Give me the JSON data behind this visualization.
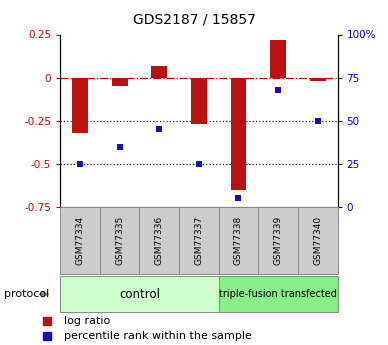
{
  "title": "GDS2187 / 15857",
  "samples": [
    "GSM77334",
    "GSM77335",
    "GSM77336",
    "GSM77337",
    "GSM77338",
    "GSM77339",
    "GSM77340"
  ],
  "log_ratio": [
    -0.32,
    -0.05,
    0.07,
    -0.27,
    -0.65,
    0.22,
    -0.02
  ],
  "percentile_rank_pct": [
    25,
    35,
    45,
    25,
    5,
    68,
    50
  ],
  "ylim_left": [
    -0.75,
    0.25
  ],
  "ylim_right": [
    0,
    100
  ],
  "bar_color": "#bb1111",
  "dot_color": "#1111bb",
  "control_label": "control",
  "triple_label": "triple-fusion transfected",
  "protocol_label": "protocol",
  "legend_bar_label": "log ratio",
  "legend_dot_label": "percentile rank within the sample",
  "background_color": "#ffffff",
  "tick_color_left": "#cc0000",
  "tick_color_right": "#0000cc",
  "sample_box_color": "#cccccc",
  "control_fill": "#ccffcc",
  "triple_fill": "#88ee88",
  "dashed_line_color": "#cc0000",
  "dotted_line_color": "#222222",
  "left_yticks": [
    -0.75,
    -0.5,
    -0.25,
    0,
    0.25
  ],
  "left_yticklabels": [
    "-0.75",
    "-0.5",
    "-0.25",
    "0",
    "0.25"
  ],
  "right_yticks": [
    0,
    25,
    50,
    75,
    100
  ],
  "right_yticklabels": [
    "0",
    "25",
    "50",
    "75",
    "100%"
  ],
  "bar_width": 0.4,
  "title_fontsize": 10
}
